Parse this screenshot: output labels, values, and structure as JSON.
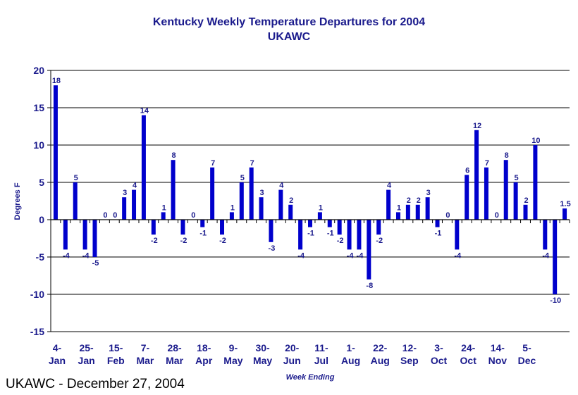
{
  "chart_data": {
    "type": "bar",
    "title": "Kentucky Weekly Temperature Departures for 2004",
    "subtitle": "UKAWC",
    "xlabel": "Week Ending",
    "ylabel": "Degrees F",
    "ylim": [
      -15,
      20
    ],
    "yticks": [
      20,
      15,
      10,
      5,
      0,
      -5,
      -10,
      -15
    ],
    "grid": true,
    "bar_color": "#0000cc",
    "text_color": "#1a1a8c",
    "x_tick_labels": [
      {
        "line1": "4-",
        "line2": "Jan",
        "index": 0
      },
      {
        "line1": "25-",
        "line2": "Jan",
        "index": 3
      },
      {
        "line1": "15-",
        "line2": "Feb",
        "index": 6
      },
      {
        "line1": "7-",
        "line2": "Mar",
        "index": 9
      },
      {
        "line1": "28-",
        "line2": "Mar",
        "index": 12
      },
      {
        "line1": "18-",
        "line2": "Apr",
        "index": 15
      },
      {
        "line1": "9-",
        "line2": "May",
        "index": 18
      },
      {
        "line1": "30-",
        "line2": "May",
        "index": 21
      },
      {
        "line1": "20-",
        "line2": "Jun",
        "index": 24
      },
      {
        "line1": "11-",
        "line2": "Jul",
        "index": 27
      },
      {
        "line1": "1-",
        "line2": "Aug",
        "index": 30
      },
      {
        "line1": "22-",
        "line2": "Aug",
        "index": 33
      },
      {
        "line1": "12-",
        "line2": "Sep",
        "index": 36
      },
      {
        "line1": "3-",
        "line2": "Oct",
        "index": 39
      },
      {
        "line1": "24-",
        "line2": "Oct",
        "index": 42
      },
      {
        "line1": "14-",
        "line2": "Nov",
        "index": 45
      },
      {
        "line1": "5-",
        "line2": "Dec",
        "index": 48
      }
    ],
    "values": [
      18,
      -4,
      5,
      -4,
      -5,
      0,
      0,
      3,
      4,
      14,
      -2,
      1,
      8,
      -2,
      0,
      -1,
      7,
      -2,
      1,
      5,
      7,
      3,
      -3,
      4,
      2,
      -4,
      -1,
      1,
      -1,
      -2,
      -4,
      -4,
      -8,
      -2,
      4,
      1,
      2,
      2,
      3,
      -1,
      0,
      -4,
      6,
      12,
      7,
      0,
      8,
      5,
      2,
      10,
      -4,
      -10,
      1.5
    ],
    "data_labels": [
      "18",
      "-4",
      "5",
      "-4",
      "-5",
      "0",
      "0",
      "3",
      "4",
      "14",
      "-2",
      "1",
      "8",
      "-2",
      "0",
      "-1",
      "7",
      "-2",
      "1",
      "5",
      "7",
      "3",
      "-3",
      "4",
      "2",
      "-4",
      "-1",
      "1",
      "-1",
      "-2",
      "-4",
      "-4",
      "-8",
      "-2",
      "4",
      "1",
      "2",
      "2",
      "3",
      "-1",
      "0",
      "-4",
      "6",
      "12",
      "7",
      "0",
      "8",
      "5",
      "2",
      "10",
      "-4",
      "-10",
      "1.5"
    ]
  },
  "footer": "UKAWC - December 27, 2004"
}
